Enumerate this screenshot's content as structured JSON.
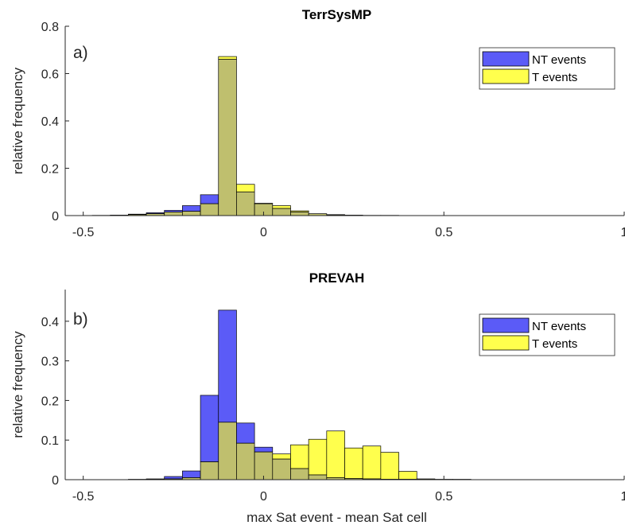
{
  "colors": {
    "nt": "#5b5bf7",
    "t": "#ffff4d",
    "overlap": "#bfbf6e"
  },
  "chart_data": [
    {
      "type": "bar",
      "title": "TerrSysMP",
      "panel_label": "a)",
      "xlabel": "",
      "ylabel": "relative frequency",
      "xlim": [
        -0.55,
        1.0
      ],
      "ylim": [
        0,
        0.8
      ],
      "xticks": [
        {
          "v": -0.5,
          "t": "-0.5"
        },
        {
          "v": 0,
          "t": "0"
        },
        {
          "v": 0.5,
          "t": "0.5"
        },
        {
          "v": 1,
          "t": "1"
        }
      ],
      "yticks": [
        {
          "v": 0,
          "t": "0"
        },
        {
          "v": 0.2,
          "t": "0.2"
        },
        {
          "v": 0.4,
          "t": "0.4"
        },
        {
          "v": 0.6,
          "t": "0.6"
        },
        {
          "v": 0.8,
          "t": "0.8"
        }
      ],
      "legend_position": "top-right",
      "bin_edges": [
        -0.475,
        -0.425,
        -0.375,
        -0.325,
        -0.275,
        -0.225,
        -0.175,
        -0.125,
        -0.075,
        -0.025,
        0.025,
        0.075,
        0.125,
        0.175,
        0.225,
        0.275,
        0.325,
        0.375,
        0.425,
        0.475,
        0.525,
        0.575,
        0.625,
        0.675,
        0.725,
        0.775,
        0.825,
        0.875,
        0.925,
        0.975
      ],
      "series": [
        {
          "name": "NT events",
          "values": [
            0.001,
            0.002,
            0.006,
            0.012,
            0.022,
            0.042,
            0.088,
            0.66,
            0.1,
            0.05,
            0.03,
            0.015,
            0.008,
            0.003,
            0.002,
            0.001,
            0.001,
            0.0005,
            0.0005,
            0,
            0,
            0,
            0,
            0,
            0,
            0,
            0,
            0,
            0
          ]
        },
        {
          "name": "T events",
          "values": [
            0,
            0.001,
            0.004,
            0.008,
            0.015,
            0.018,
            0.05,
            0.672,
            0.132,
            0.052,
            0.042,
            0.02,
            0.008,
            0.004,
            0.002,
            0.001,
            0.001,
            0.0005,
            0.0005,
            0,
            0,
            0,
            0,
            0,
            0,
            0,
            0,
            0,
            0
          ]
        }
      ]
    },
    {
      "type": "bar",
      "title": "PREVAH",
      "panel_label": "b)",
      "xlabel": "max Sat event - mean Sat cell",
      "ylabel": "relative frequency",
      "xlim": [
        -0.55,
        1.0
      ],
      "ylim": [
        0,
        0.48
      ],
      "xticks": [
        {
          "v": -0.5,
          "t": "-0.5"
        },
        {
          "v": 0,
          "t": "0"
        },
        {
          "v": 0.5,
          "t": "0.5"
        },
        {
          "v": 1,
          "t": "1"
        }
      ],
      "yticks": [
        {
          "v": 0,
          "t": "0"
        },
        {
          "v": 0.1,
          "t": "0.1"
        },
        {
          "v": 0.2,
          "t": "0.2"
        },
        {
          "v": 0.3,
          "t": "0.3"
        },
        {
          "v": 0.4,
          "t": "0.4"
        }
      ],
      "legend_position": "top-right",
      "bin_edges": [
        -0.475,
        -0.425,
        -0.375,
        -0.325,
        -0.275,
        -0.225,
        -0.175,
        -0.125,
        -0.075,
        -0.025,
        0.025,
        0.075,
        0.125,
        0.175,
        0.225,
        0.275,
        0.325,
        0.375,
        0.425,
        0.475,
        0.525,
        0.575,
        0.625,
        0.675,
        0.725,
        0.775,
        0.825,
        0.875,
        0.925,
        0.975
      ],
      "series": [
        {
          "name": "NT events",
          "values": [
            0,
            0,
            0.001,
            0.002,
            0.008,
            0.022,
            0.213,
            0.428,
            0.143,
            0.082,
            0.052,
            0.028,
            0.012,
            0.005,
            0.003,
            0.002,
            0.001,
            0.001,
            0.0005,
            0.0005,
            0,
            0,
            0,
            0,
            0,
            0,
            0,
            0,
            0
          ]
        },
        {
          "name": "T events",
          "values": [
            0,
            0,
            0,
            0.001,
            0.002,
            0.005,
            0.045,
            0.145,
            0.092,
            0.07,
            0.065,
            0.088,
            0.102,
            0.123,
            0.08,
            0.085,
            0.069,
            0.021,
            0.002,
            0.001,
            0.001,
            0,
            0,
            0,
            0,
            0,
            0,
            0,
            0
          ]
        }
      ]
    }
  ]
}
